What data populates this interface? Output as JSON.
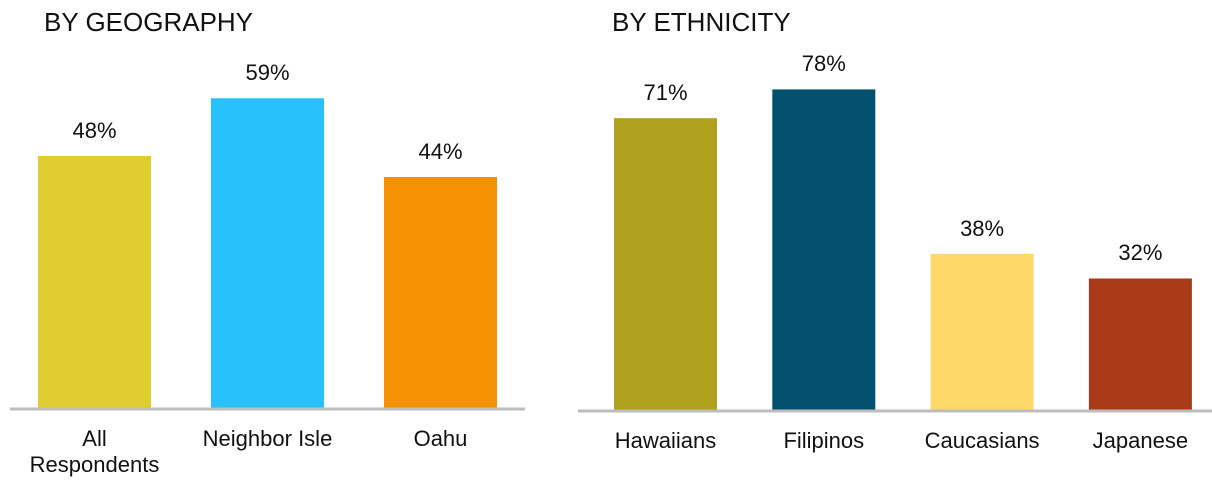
{
  "chart_data": [
    {
      "type": "bar",
      "title": "BY GEOGRAPHY",
      "categories": [
        "All Respondents",
        "Neighbor Isle",
        "Oahu"
      ],
      "values": [
        48,
        59,
        44
      ],
      "value_labels": [
        "48%",
        "59%",
        "44%"
      ],
      "colors": [
        "#dfcd32",
        "#27c2fc",
        "#f59203"
      ]
    },
    {
      "type": "bar",
      "title": "BY ETHNICITY",
      "categories": [
        "Hawaiians",
        "Filipinos",
        "Caucasians",
        "Japanese"
      ],
      "values": [
        71,
        78,
        38,
        32
      ],
      "value_labels": [
        "71%",
        "78%",
        "38%",
        "32%"
      ],
      "colors": [
        "#afa11c",
        "#03516f",
        "#fdd96b",
        "#aa3b1a"
      ]
    }
  ]
}
